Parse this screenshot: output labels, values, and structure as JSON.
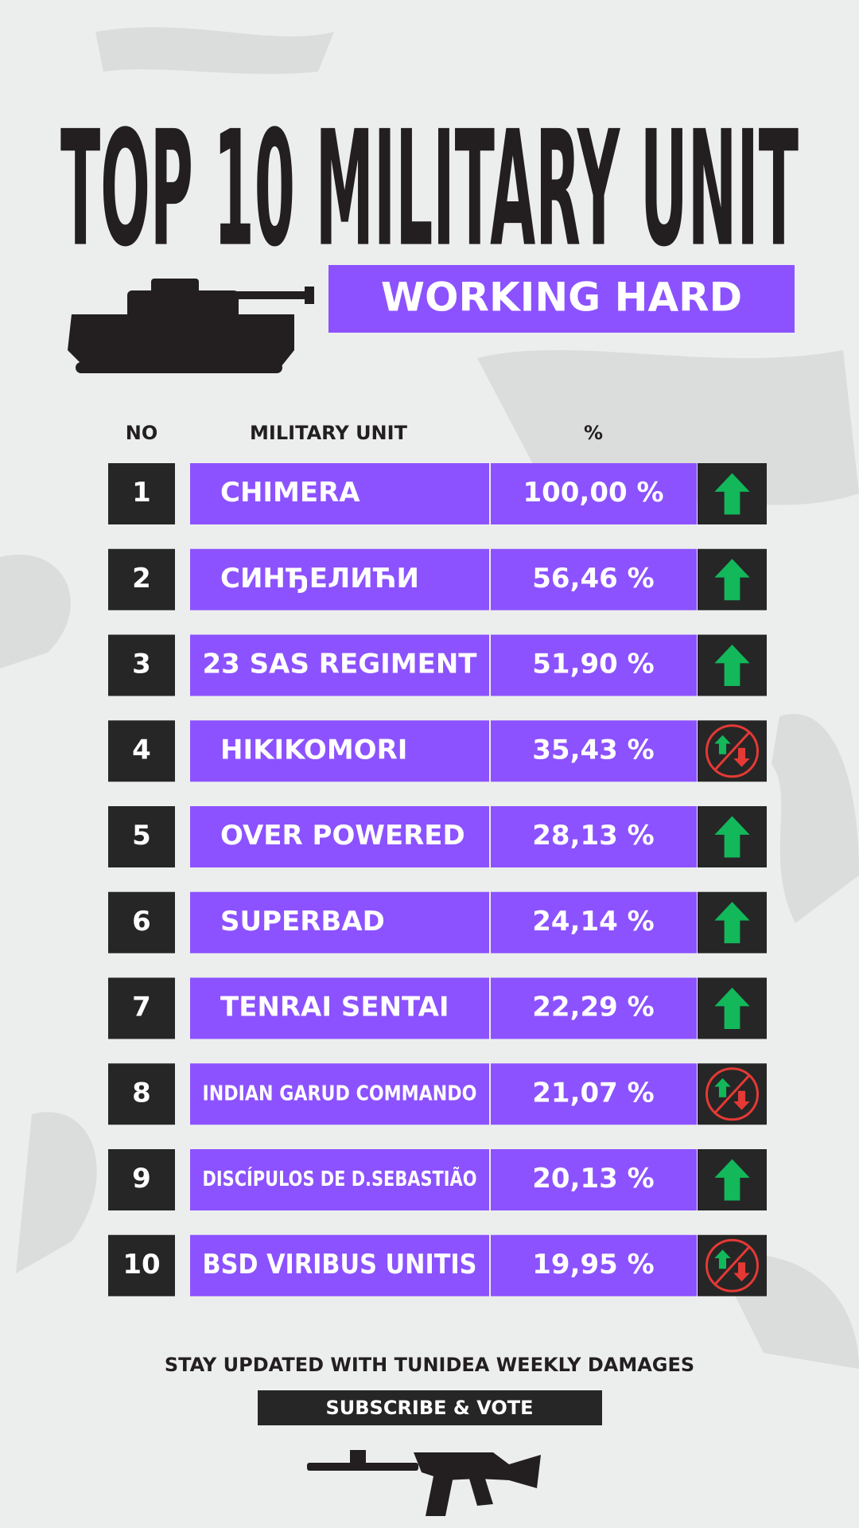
{
  "title": "TOP 10 MILITARY UNIT",
  "subtitle": "WORKING HARD",
  "table": {
    "headers": [
      "NO",
      "MILITARY UNIT",
      "%"
    ],
    "rows": [
      {
        "rank": "1",
        "name": "CHIMERA",
        "percent": "100,00 %",
        "trend": "up"
      },
      {
        "rank": "2",
        "name": "СИНЂЕЛИЋИ",
        "percent": "56,46 %",
        "trend": "up"
      },
      {
        "rank": "3",
        "name": "23 SAS REGIMENT",
        "percent": "51,90 %",
        "trend": "up"
      },
      {
        "rank": "4",
        "name": "HIKIKOMORI",
        "percent": "35,43 %",
        "trend": "none"
      },
      {
        "rank": "5",
        "name": "OVER POWERED",
        "percent": "28,13 %",
        "trend": "up"
      },
      {
        "rank": "6",
        "name": "SUPERBAD",
        "percent": "24,14 %",
        "trend": "up"
      },
      {
        "rank": "7",
        "name": "TENRAI SENTAI",
        "percent": "22,29 %",
        "trend": "up"
      },
      {
        "rank": "8",
        "name": "INDIAN GARUD COMMANDO",
        "percent": "21,07 %",
        "trend": "none"
      },
      {
        "rank": "9",
        "name": "DISCÍPULOS DE D.SEBASTIÃO",
        "percent": "20,13 %",
        "trend": "up"
      },
      {
        "rank": "10",
        "name": "BSD VIRIBUS UNITIS",
        "percent": "19,95 %",
        "trend": "none"
      }
    ]
  },
  "footer": {
    "text": "STAY UPDATED WITH TUNIDEA WEEKLY DAMAGES",
    "button": "SUBSCRIBE & VOTE"
  }
}
